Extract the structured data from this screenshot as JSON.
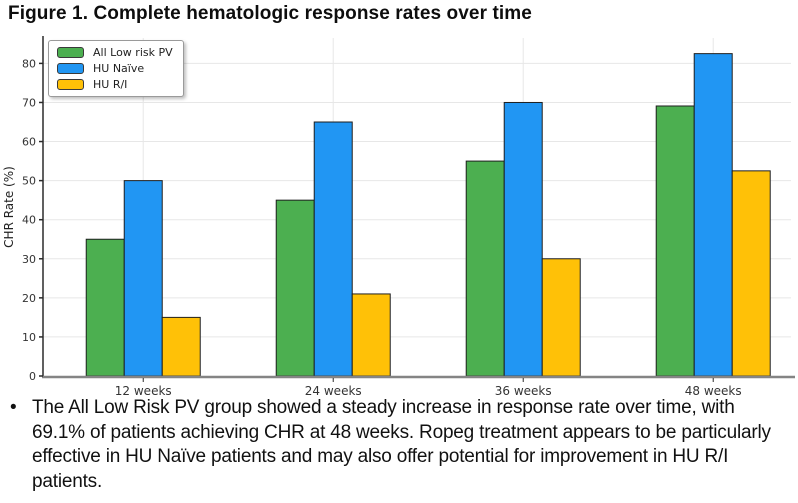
{
  "figure": {
    "title": "Figure 1. Complete hematologic response rates over time",
    "bullet_marker": "•",
    "bullet_text": "The All Low Risk PV group showed a steady increase in response rate over time, with 69.1% of patients achieving CHR at 48 weeks. Ropeg treatment appears to be particularly effective in HU Naïve patients and may also offer potential for improvement in HU R/I patients."
  },
  "chart_data": {
    "type": "bar",
    "title": "",
    "categories": [
      "12 weeks",
      "24 weeks",
      "36 weeks",
      "48 weeks"
    ],
    "series": [
      {
        "name": "All Low risk PV",
        "color": "#4CAF50",
        "values": [
          35,
          45,
          55,
          69.1
        ]
      },
      {
        "name": "HU Naïve",
        "color": "#2196F3",
        "values": [
          50,
          65,
          70,
          82.5
        ]
      },
      {
        "name": "HU R/I",
        "color": "#FFC107",
        "values": [
          15,
          21,
          30,
          52.5
        ]
      }
    ],
    "xlabel": "",
    "ylabel": "CHR Rate (%)",
    "ylim": [
      0,
      86.5
    ],
    "yticks": [
      0,
      10,
      20,
      30,
      40,
      50,
      60,
      70,
      80
    ],
    "grid": true,
    "legend_position": "upper-left",
    "bar_edge_color": "#1f1f1f",
    "axis_line_color": "#848484",
    "spine_color": "#2b2b2b",
    "grid_color": "#e7e7e7",
    "tick_label_color": "#333333"
  }
}
